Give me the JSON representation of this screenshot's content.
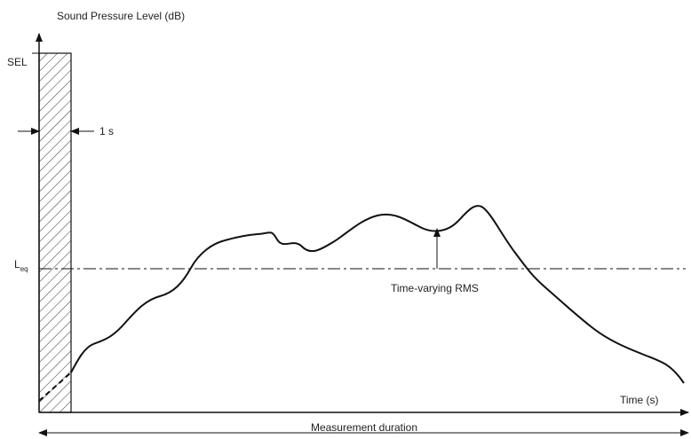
{
  "axis": {
    "y_label": "Sound Pressure Level (dB)",
    "x_label": "Time (s)"
  },
  "labels": {
    "sel": "SEL",
    "one_second": "1 s",
    "leq": {
      "main": "L",
      "sub": "eq"
    },
    "rms": "Time-varying RMS",
    "duration": "Measurement duration"
  }
}
